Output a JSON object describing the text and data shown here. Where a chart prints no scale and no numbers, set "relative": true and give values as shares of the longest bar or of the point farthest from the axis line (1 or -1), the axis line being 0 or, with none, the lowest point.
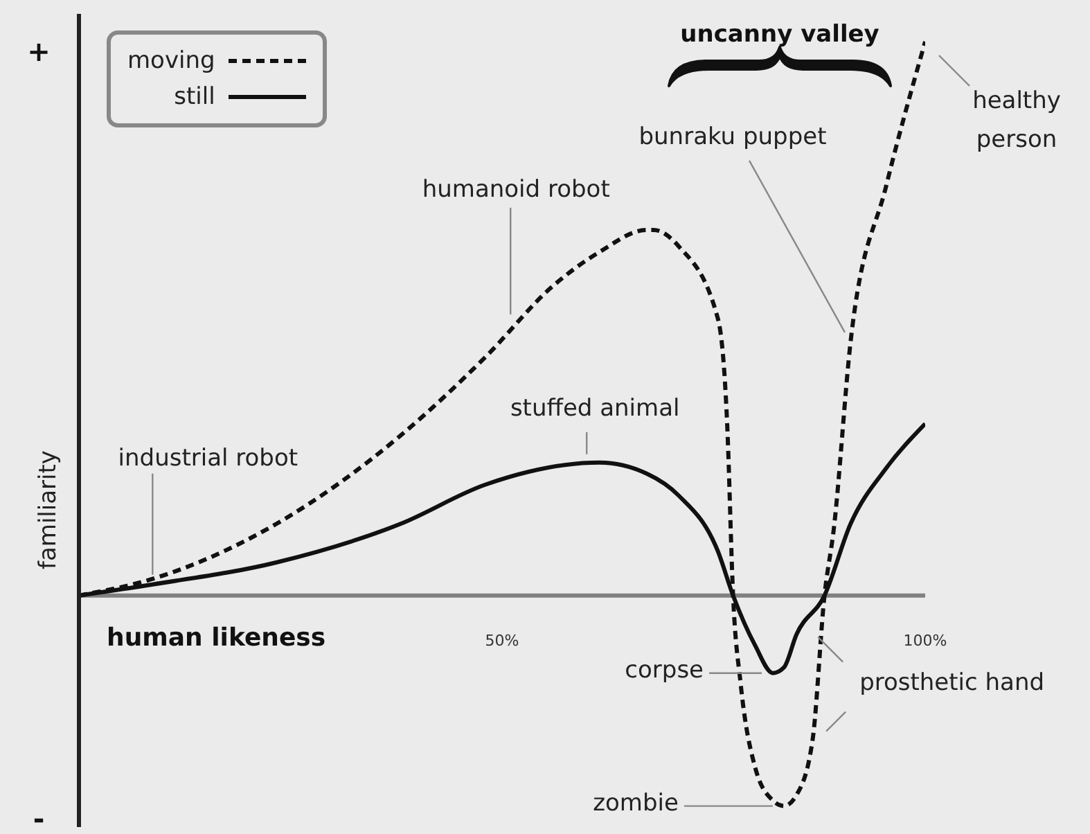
{
  "chart_data": {
    "type": "line",
    "relative": true,
    "xlabel": "human likeness",
    "ylabel": "familiarity",
    "xlim": [
      0,
      100
    ],
    "xticks": [
      {
        "value": 50,
        "label": "50%"
      },
      {
        "value": 100,
        "label": "100%"
      }
    ],
    "legend": "top left",
    "marker": "none",
    "series": [
      {
        "name": "moving",
        "color": "#111111",
        "line_style": "dashed",
        "x": [
          0,
          8.7,
          23.4,
          38.1,
          48.0,
          56.1,
          61.5,
          67.1,
          67.9,
          70.9,
          75.5,
          76.6,
          77.3,
          78.2,
          79.9,
          82.0,
          83.3,
          84.8,
          86.7,
          88.1,
          89.2,
          91.2,
          95.4,
          100
        ],
        "values": [
          0,
          0.03,
          0.13,
          0.29,
          0.43,
          0.56,
          0.62,
          0.66,
          0.66,
          0.63,
          0.5,
          0.31,
          0,
          -0.16,
          -0.31,
          -0.37,
          -0.38,
          -0.36,
          -0.26,
          0,
          0.12,
          0.46,
          0.74,
          1
        ]
      },
      {
        "name": "still",
        "color": "#111111",
        "line_style": "solid",
        "x": [
          0,
          8.7,
          23.4,
          38.1,
          48.0,
          61.5,
          67.1,
          70.9,
          75.5,
          77.3,
          79.9,
          82.0,
          83.3,
          84.8,
          88.1,
          91.2,
          95.4,
          100
        ],
        "values": [
          0,
          0.02,
          0.06,
          0.13,
          0.2,
          0.24,
          0.22,
          0.18,
          0.08,
          0,
          -0.09,
          -0.14,
          -0.13,
          -0.07,
          0,
          0.13,
          0.23,
          0.31
        ]
      }
    ],
    "annotations": [
      "+",
      "-",
      "uncanny valley",
      {
        "text": "industrial robot",
        "x": 8.7,
        "y": 0.03
      },
      {
        "text": "humanoid robot",
        "x": 51,
        "y": 0.5
      },
      {
        "text": "stuffed animal",
        "x": 60,
        "y": 0.24
      },
      {
        "text": "bunraku puppet",
        "x": 91,
        "y": 0.46
      },
      {
        "text": "healthy person",
        "x": 100,
        "y": 1
      },
      {
        "text": "corpse",
        "x": 82,
        "y": -0.14
      },
      {
        "text": "zombie",
        "x": 83.3,
        "y": -0.38
      },
      {
        "text": "prosthetic hand",
        "x": 87,
        "y": -0.07
      }
    ]
  }
}
